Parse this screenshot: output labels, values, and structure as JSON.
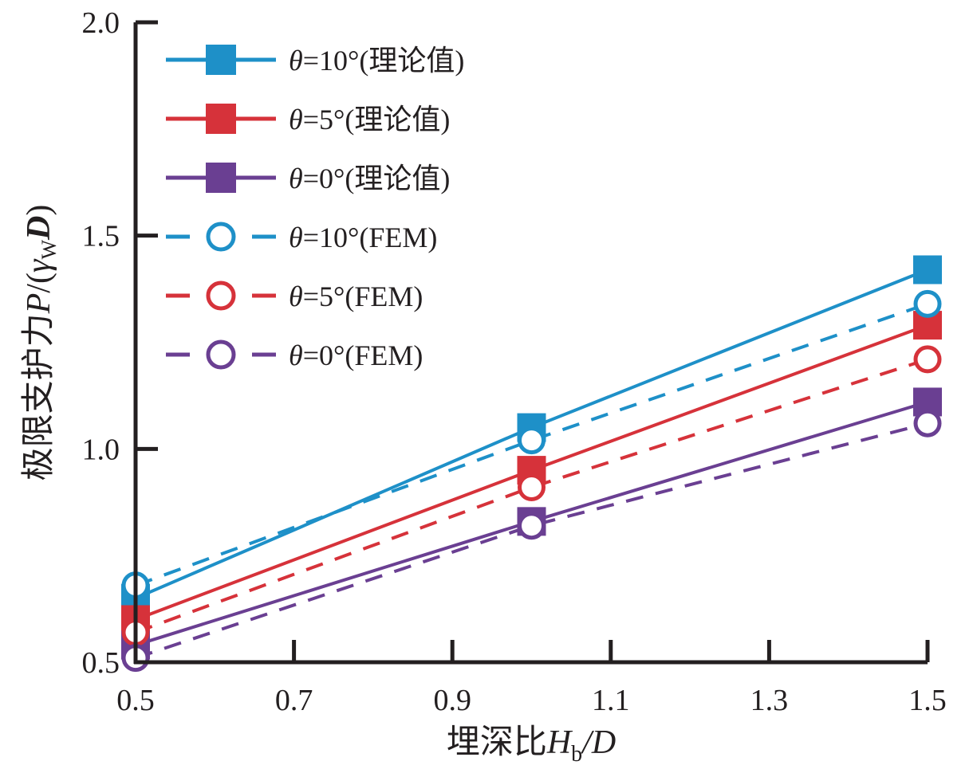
{
  "chart_data": {
    "type": "line",
    "title": "",
    "xlabel": "埋深比H_b/D",
    "xlabel_parts": {
      "prefix": "埋深比",
      "var": "H",
      "sub": "b",
      "suffix": "/D"
    },
    "ylabel": "极限支护力P/(γ_W D)",
    "ylabel_parts": {
      "prefix": "极限支护力",
      "var": "P",
      "mid": "/(",
      "gamma": "γ",
      "sub": "W",
      "var2": "D",
      "end": ")"
    },
    "xlim": [
      0.5,
      1.5
    ],
    "ylim": [
      0.5,
      2.0
    ],
    "x_ticks": [
      0.5,
      0.7,
      0.9,
      1.1,
      1.3,
      1.5
    ],
    "x_tick_labels": [
      "0.5",
      "0.7",
      "0.9",
      "1.1",
      "1.3",
      "1.5"
    ],
    "y_ticks": [
      0.5,
      1.0,
      1.5,
      2.0
    ],
    "y_tick_labels": [
      "0.5",
      "1.0",
      "1.5",
      "2.0"
    ],
    "grid": false,
    "legend_position": "top-left",
    "x": [
      0.5,
      1.0,
      1.5
    ],
    "series": [
      {
        "name": "θ=10°(理论值)",
        "theta": "θ",
        "rest": "=10°(理论值)",
        "color": "#1e90c8",
        "style": "solid",
        "marker": "square",
        "values": [
          0.65,
          1.05,
          1.42
        ]
      },
      {
        "name": "θ=5°(理论值)",
        "theta": "θ",
        "rest": "=5°(理论值)",
        "color": "#d6323a",
        "style": "solid",
        "marker": "square",
        "values": [
          0.6,
          0.95,
          1.29
        ]
      },
      {
        "name": "θ=0°(理论值)",
        "theta": "θ",
        "rest": "=0°(理论值)",
        "color": "#6a3f92",
        "style": "solid",
        "marker": "square",
        "values": [
          0.54,
          0.83,
          1.11
        ]
      },
      {
        "name": "θ=10°(FEM)",
        "theta": "θ",
        "rest": "=10°(FEM)",
        "color": "#1e90c8",
        "style": "dashed",
        "marker": "circle",
        "values": [
          0.68,
          1.02,
          1.34
        ]
      },
      {
        "name": "θ=5°(FEM)",
        "theta": "θ",
        "rest": "=5°(FEM)",
        "color": "#d6323a",
        "style": "dashed",
        "marker": "circle",
        "values": [
          0.57,
          0.91,
          1.21
        ]
      },
      {
        "name": "θ=0°(FEM)",
        "theta": "θ",
        "rest": "=0°(FEM)",
        "color": "#6a3f92",
        "style": "dashed",
        "marker": "circle",
        "values": [
          0.51,
          0.82,
          1.06
        ]
      }
    ]
  }
}
